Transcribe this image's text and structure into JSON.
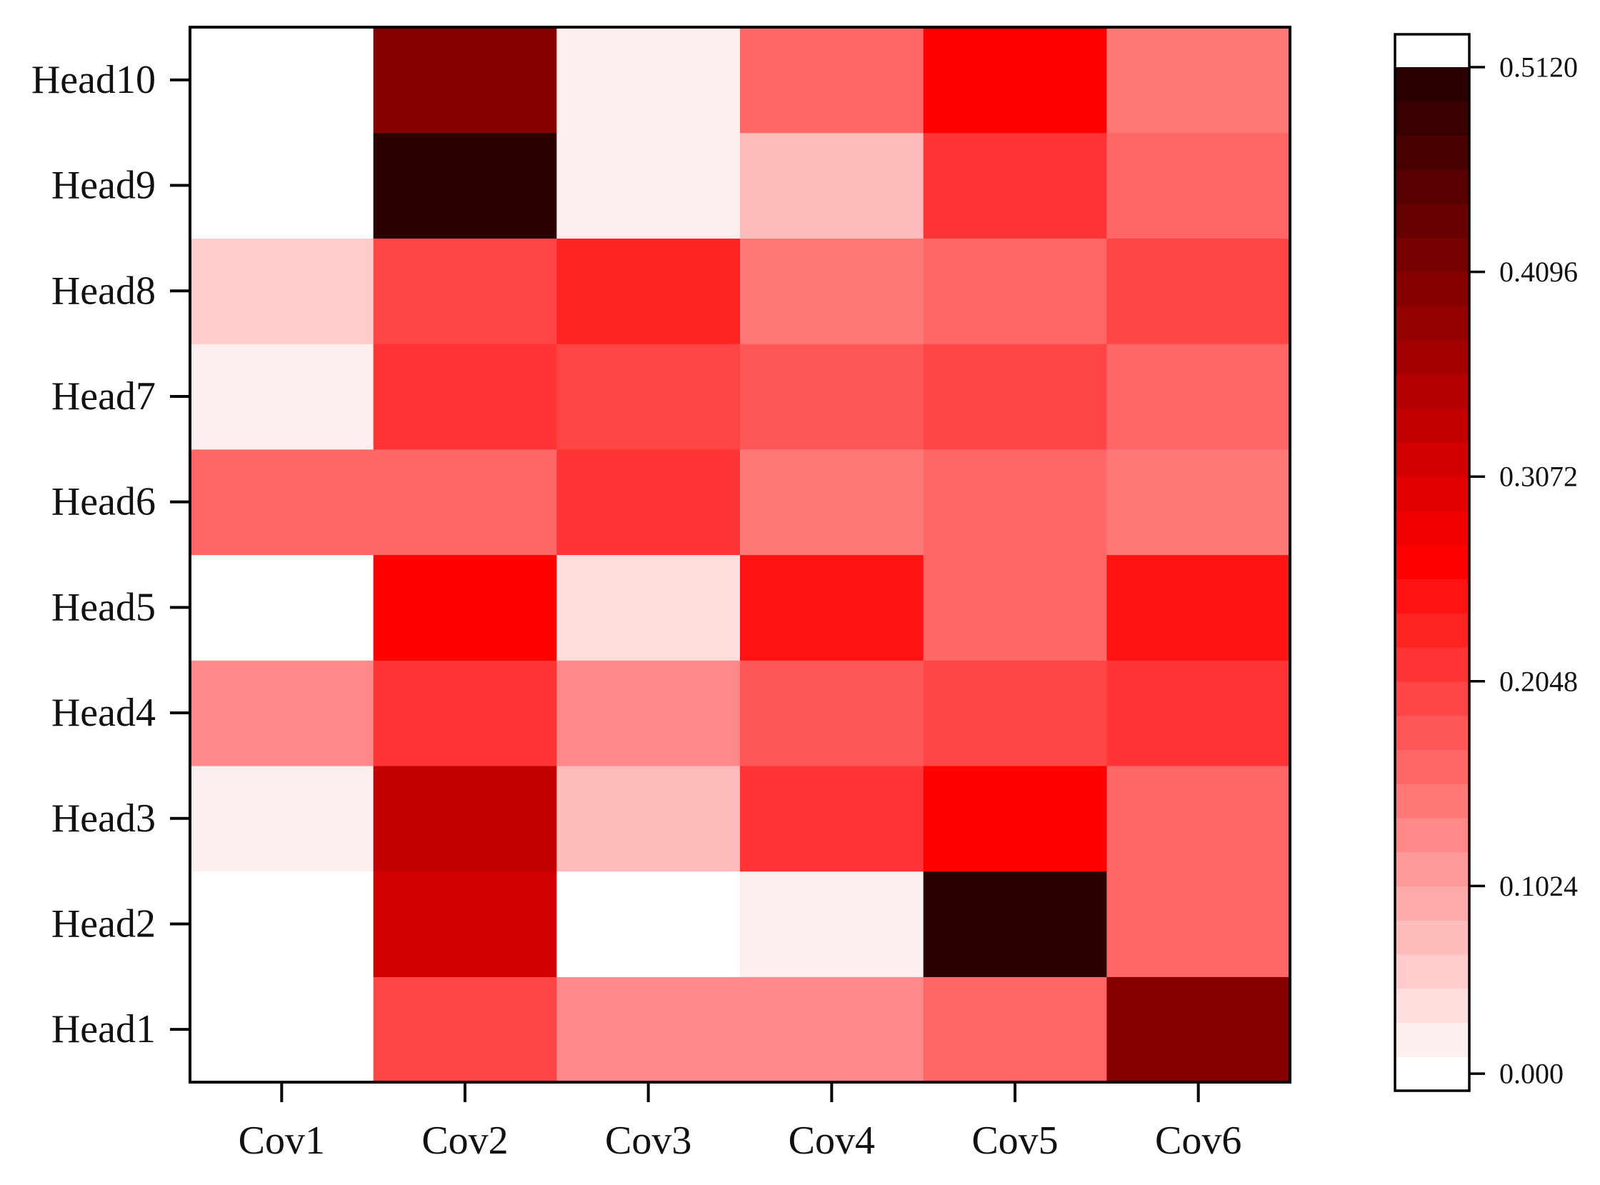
{
  "chart_data": {
    "type": "heatmap",
    "title": "",
    "xlabel": "",
    "ylabel": "",
    "x_categories": [
      "Cov1",
      "Cov2",
      "Cov3",
      "Cov4",
      "Cov5",
      "Cov6"
    ],
    "y_categories": [
      "Head1",
      "Head2",
      "Head3",
      "Head4",
      "Head5",
      "Head6",
      "Head7",
      "Head8",
      "Head9",
      "Head10"
    ],
    "values": [
      [
        0.0,
        0.19,
        0.13,
        0.13,
        0.17,
        0.4
      ],
      [
        0.0,
        0.32,
        0.0,
        0.03,
        0.5,
        0.17
      ],
      [
        0.03,
        0.34,
        0.07,
        0.21,
        0.26,
        0.16
      ],
      [
        0.12,
        0.21,
        0.12,
        0.18,
        0.2,
        0.21
      ],
      [
        0.0,
        0.27,
        0.05,
        0.25,
        0.17,
        0.25
      ],
      [
        0.16,
        0.16,
        0.21,
        0.14,
        0.16,
        0.14
      ],
      [
        0.03,
        0.21,
        0.19,
        0.18,
        0.2,
        0.17
      ],
      [
        0.06,
        0.2,
        0.23,
        0.14,
        0.17,
        0.2
      ],
      [
        0.0,
        0.5,
        0.02,
        0.08,
        0.21,
        0.17
      ],
      [
        0.0,
        0.4,
        0.02,
        0.17,
        0.27,
        0.15
      ]
    ],
    "colorbar": {
      "min": 0.0,
      "max": 0.512,
      "ticks": [
        0.0,
        0.1024,
        0.2048,
        0.3072,
        0.4096,
        0.512
      ],
      "tick_labels": [
        "0.000",
        "0.1024",
        "0.2048",
        "0.3072",
        "0.4096",
        "0.5120"
      ],
      "levels": 30,
      "colors": [
        "#ffffff",
        "#ff0000",
        "#2a0000"
      ],
      "color_stops": [
        0.0,
        0.52,
        1.0
      ]
    },
    "legend": "colorbar right",
    "grid": false
  }
}
